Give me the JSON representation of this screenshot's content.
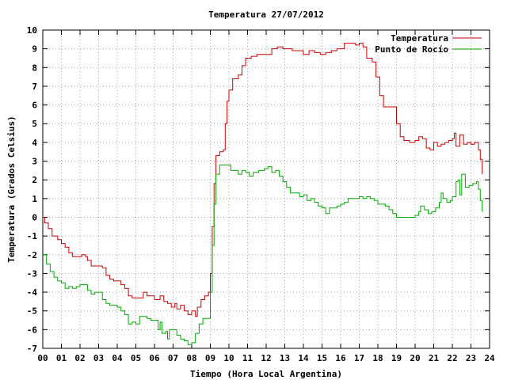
{
  "chart_data": {
    "type": "line",
    "title": "Temperatura 27/07/2012",
    "xlabel": "Tiempo (Hora Local Argentina)",
    "ylabel": "Temperatura (Grados Celsius)",
    "xlim": [
      0,
      24
    ],
    "ylim": [
      -7,
      10
    ],
    "grid": true,
    "legend_position": "top-right",
    "x_tick_labels": [
      "00",
      "01",
      "02",
      "03",
      "04",
      "05",
      "06",
      "07",
      "08",
      "09",
      "10",
      "11",
      "12",
      "13",
      "14",
      "15",
      "16",
      "17",
      "18",
      "19",
      "20",
      "21",
      "22",
      "23",
      "24"
    ],
    "y_tick_labels": [
      "-7",
      "-6",
      "-5",
      "-4",
      "-3",
      "-2",
      "-1",
      "0",
      "1",
      "2",
      "3",
      "4",
      "5",
      "6",
      "7",
      "8",
      "9",
      "10"
    ],
    "series": [
      {
        "name": "Temperatura",
        "color": "#cc0000",
        "points": [
          [
            0.0,
            0.0
          ],
          [
            0.1,
            -0.3
          ],
          [
            0.3,
            -0.6
          ],
          [
            0.5,
            -1.0
          ],
          [
            0.8,
            -1.2
          ],
          [
            1.0,
            -1.4
          ],
          [
            1.2,
            -1.6
          ],
          [
            1.4,
            -1.9
          ],
          [
            1.6,
            -2.1
          ],
          [
            1.9,
            -2.1
          ],
          [
            2.1,
            -2.0
          ],
          [
            2.3,
            -2.1
          ],
          [
            2.4,
            -2.3
          ],
          [
            2.6,
            -2.6
          ],
          [
            2.8,
            -2.6
          ],
          [
            3.0,
            -2.6
          ],
          [
            3.2,
            -2.7
          ],
          [
            3.4,
            -3.1
          ],
          [
            3.6,
            -3.3
          ],
          [
            3.8,
            -3.4
          ],
          [
            4.0,
            -3.4
          ],
          [
            4.2,
            -3.6
          ],
          [
            4.4,
            -3.8
          ],
          [
            4.6,
            -4.2
          ],
          [
            4.8,
            -4.3
          ],
          [
            5.0,
            -4.3
          ],
          [
            5.2,
            -4.3
          ],
          [
            5.4,
            -4.0
          ],
          [
            5.6,
            -4.2
          ],
          [
            5.8,
            -4.2
          ],
          [
            6.0,
            -4.4
          ],
          [
            6.3,
            -4.2
          ],
          [
            6.5,
            -4.5
          ],
          [
            6.7,
            -4.6
          ],
          [
            6.9,
            -4.8
          ],
          [
            7.1,
            -4.6
          ],
          [
            7.2,
            -4.9
          ],
          [
            7.4,
            -4.7
          ],
          [
            7.6,
            -5.0
          ],
          [
            7.8,
            -5.2
          ],
          [
            8.0,
            -5.0
          ],
          [
            8.2,
            -5.3
          ],
          [
            8.3,
            -4.8
          ],
          [
            8.5,
            -4.4
          ],
          [
            8.7,
            -4.2
          ],
          [
            8.9,
            -4.0
          ],
          [
            9.0,
            -3.0
          ],
          [
            9.1,
            -0.5
          ],
          [
            9.2,
            1.8
          ],
          [
            9.3,
            3.3
          ],
          [
            9.5,
            3.5
          ],
          [
            9.7,
            3.6
          ],
          [
            9.8,
            5.0
          ],
          [
            9.9,
            6.2
          ],
          [
            10.0,
            6.8
          ],
          [
            10.2,
            7.4
          ],
          [
            10.5,
            7.6
          ],
          [
            10.7,
            8.1
          ],
          [
            10.9,
            8.5
          ],
          [
            11.2,
            8.6
          ],
          [
            11.5,
            8.7
          ],
          [
            11.8,
            8.7
          ],
          [
            12.0,
            8.7
          ],
          [
            12.3,
            9.0
          ],
          [
            12.6,
            9.1
          ],
          [
            12.9,
            9.0
          ],
          [
            13.1,
            9.0
          ],
          [
            13.4,
            8.9
          ],
          [
            13.7,
            8.9
          ],
          [
            14.0,
            8.7
          ],
          [
            14.3,
            8.9
          ],
          [
            14.6,
            8.8
          ],
          [
            14.9,
            8.7
          ],
          [
            15.2,
            8.8
          ],
          [
            15.5,
            8.9
          ],
          [
            15.8,
            9.0
          ],
          [
            16.0,
            9.0
          ],
          [
            16.2,
            9.3
          ],
          [
            16.5,
            9.3
          ],
          [
            16.8,
            9.2
          ],
          [
            17.0,
            9.3
          ],
          [
            17.2,
            9.1
          ],
          [
            17.4,
            8.5
          ],
          [
            17.7,
            8.3
          ],
          [
            17.9,
            7.5
          ],
          [
            18.1,
            6.5
          ],
          [
            18.3,
            5.9
          ],
          [
            18.6,
            5.9
          ],
          [
            18.8,
            5.9
          ],
          [
            19.0,
            5.0
          ],
          [
            19.2,
            4.3
          ],
          [
            19.4,
            4.1
          ],
          [
            19.7,
            4.0
          ],
          [
            20.0,
            4.1
          ],
          [
            20.2,
            4.3
          ],
          [
            20.4,
            4.2
          ],
          [
            20.6,
            3.7
          ],
          [
            20.8,
            3.6
          ],
          [
            21.0,
            4.0
          ],
          [
            21.2,
            3.8
          ],
          [
            21.4,
            3.9
          ],
          [
            21.6,
            4.0
          ],
          [
            21.8,
            4.1
          ],
          [
            22.0,
            4.2
          ],
          [
            22.1,
            4.5
          ],
          [
            22.2,
            3.8
          ],
          [
            22.4,
            4.4
          ],
          [
            22.6,
            3.9
          ],
          [
            22.8,
            4.0
          ],
          [
            23.0,
            3.9
          ],
          [
            23.2,
            4.0
          ],
          [
            23.4,
            3.6
          ],
          [
            23.5,
            3.1
          ],
          [
            23.6,
            2.3
          ]
        ]
      },
      {
        "name": "Punto de Rocío",
        "color": "#00aa00",
        "points": [
          [
            0.0,
            -2.0
          ],
          [
            0.2,
            -2.5
          ],
          [
            0.4,
            -2.9
          ],
          [
            0.6,
            -3.2
          ],
          [
            0.8,
            -3.4
          ],
          [
            1.0,
            -3.5
          ],
          [
            1.2,
            -3.8
          ],
          [
            1.4,
            -3.7
          ],
          [
            1.6,
            -3.8
          ],
          [
            1.8,
            -3.7
          ],
          [
            2.0,
            -3.6
          ],
          [
            2.2,
            -3.6
          ],
          [
            2.4,
            -3.9
          ],
          [
            2.6,
            -4.1
          ],
          [
            2.8,
            -4.0
          ],
          [
            3.0,
            -4.0
          ],
          [
            3.2,
            -4.4
          ],
          [
            3.4,
            -4.6
          ],
          [
            3.6,
            -4.7
          ],
          [
            3.8,
            -4.7
          ],
          [
            4.0,
            -4.8
          ],
          [
            4.2,
            -5.0
          ],
          [
            4.4,
            -5.2
          ],
          [
            4.6,
            -5.7
          ],
          [
            4.8,
            -5.6
          ],
          [
            5.0,
            -5.7
          ],
          [
            5.2,
            -5.3
          ],
          [
            5.4,
            -5.3
          ],
          [
            5.6,
            -5.4
          ],
          [
            5.8,
            -5.5
          ],
          [
            6.0,
            -5.5
          ],
          [
            6.2,
            -6.0
          ],
          [
            6.3,
            -5.6
          ],
          [
            6.4,
            -6.2
          ],
          [
            6.6,
            -6.1
          ],
          [
            6.7,
            -6.5
          ],
          [
            6.8,
            -6.0
          ],
          [
            7.0,
            -6.0
          ],
          [
            7.2,
            -6.3
          ],
          [
            7.4,
            -6.5
          ],
          [
            7.6,
            -6.6
          ],
          [
            7.8,
            -6.8
          ],
          [
            8.0,
            -6.7
          ],
          [
            8.2,
            -6.2
          ],
          [
            8.4,
            -5.7
          ],
          [
            8.6,
            -5.4
          ],
          [
            8.9,
            -5.4
          ],
          [
            9.0,
            -4.0
          ],
          [
            9.1,
            -1.5
          ],
          [
            9.2,
            0.7
          ],
          [
            9.3,
            2.3
          ],
          [
            9.5,
            2.8
          ],
          [
            9.7,
            2.8
          ],
          [
            9.9,
            2.8
          ],
          [
            10.1,
            2.5
          ],
          [
            10.3,
            2.5
          ],
          [
            10.5,
            2.3
          ],
          [
            10.7,
            2.5
          ],
          [
            10.9,
            2.4
          ],
          [
            11.1,
            2.2
          ],
          [
            11.3,
            2.4
          ],
          [
            11.6,
            2.5
          ],
          [
            11.9,
            2.6
          ],
          [
            12.1,
            2.7
          ],
          [
            12.3,
            2.4
          ],
          [
            12.5,
            2.5
          ],
          [
            12.7,
            2.2
          ],
          [
            12.9,
            1.9
          ],
          [
            13.1,
            1.6
          ],
          [
            13.3,
            1.3
          ],
          [
            13.6,
            1.3
          ],
          [
            13.8,
            1.1
          ],
          [
            14.0,
            1.2
          ],
          [
            14.2,
            0.9
          ],
          [
            14.4,
            1.0
          ],
          [
            14.6,
            0.8
          ],
          [
            14.8,
            0.6
          ],
          [
            15.0,
            0.5
          ],
          [
            15.2,
            0.2
          ],
          [
            15.4,
            0.5
          ],
          [
            15.6,
            0.5
          ],
          [
            15.8,
            0.6
          ],
          [
            16.0,
            0.7
          ],
          [
            16.2,
            0.8
          ],
          [
            16.4,
            1.0
          ],
          [
            16.6,
            1.0
          ],
          [
            16.8,
            1.0
          ],
          [
            17.0,
            1.1
          ],
          [
            17.2,
            1.0
          ],
          [
            17.4,
            1.1
          ],
          [
            17.6,
            1.0
          ],
          [
            17.8,
            0.9
          ],
          [
            18.0,
            0.7
          ],
          [
            18.2,
            0.7
          ],
          [
            18.4,
            0.6
          ],
          [
            18.6,
            0.4
          ],
          [
            18.8,
            0.2
          ],
          [
            19.0,
            0.0
          ],
          [
            19.2,
            0.0
          ],
          [
            19.4,
            0.0
          ],
          [
            19.6,
            0.0
          ],
          [
            19.8,
            0.0
          ],
          [
            20.0,
            0.1
          ],
          [
            20.2,
            0.3
          ],
          [
            20.3,
            0.6
          ],
          [
            20.5,
            0.4
          ],
          [
            20.7,
            0.2
          ],
          [
            20.9,
            0.3
          ],
          [
            21.1,
            0.5
          ],
          [
            21.3,
            0.8
          ],
          [
            21.4,
            1.3
          ],
          [
            21.5,
            1.0
          ],
          [
            21.7,
            0.8
          ],
          [
            21.9,
            0.9
          ],
          [
            22.0,
            1.1
          ],
          [
            22.2,
            1.9
          ],
          [
            22.3,
            2.0
          ],
          [
            22.4,
            1.2
          ],
          [
            22.5,
            2.3
          ],
          [
            22.7,
            1.6
          ],
          [
            22.9,
            1.7
          ],
          [
            23.1,
            1.8
          ],
          [
            23.3,
            1.9
          ],
          [
            23.4,
            1.5
          ],
          [
            23.5,
            0.9
          ],
          [
            23.6,
            0.3
          ]
        ]
      }
    ]
  }
}
